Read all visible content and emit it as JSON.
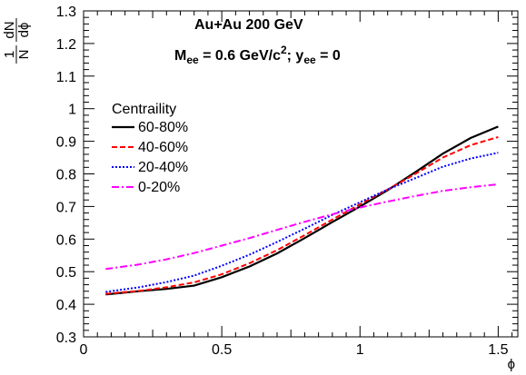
{
  "chart_data": {
    "type": "line",
    "title": "",
    "xlabel": "ϕ",
    "ylabel": {
      "numerator": "1",
      "denominator": "N",
      "diff_numerator": "dN",
      "diff_denominator": "dϕ"
    },
    "xlim": [
      0,
      1.571
    ],
    "ylim": [
      0.3,
      1.3
    ],
    "x_ticks": [
      0,
      0.5,
      1,
      1.5
    ],
    "x_tick_labels": [
      "0",
      "0.5",
      "1",
      "1.5"
    ],
    "y_ticks": [
      0.3,
      0.4,
      0.5,
      0.6,
      0.7,
      0.8,
      0.9,
      1,
      1.1,
      1.2,
      1.3
    ],
    "y_tick_labels": [
      "0.3",
      "0.4",
      "0.5",
      "0.6",
      "0.7",
      "0.8",
      "0.9",
      "1",
      "1.1",
      "1.2",
      "1.3"
    ],
    "grid": false,
    "annotations": {
      "line1": "Au+Au 200 GeV",
      "line2": {
        "m": "M",
        "m_sub": "ee",
        "value": " = 0.6 GeV/c",
        "sup": "2",
        "sep": "; y",
        "y_sub": "ee",
        "tail": " = 0"
      }
    },
    "legend": {
      "title": "Centraility",
      "placement": "left-middle"
    },
    "series": [
      {
        "name": "60-80%",
        "color": "#000000",
        "style": "solid",
        "x": [
          0.08,
          0.2,
          0.3,
          0.4,
          0.5,
          0.6,
          0.7,
          0.8,
          0.9,
          1.0,
          1.1,
          1.2,
          1.3,
          1.4,
          1.5
        ],
        "y": [
          0.43,
          0.44,
          0.447,
          0.457,
          0.483,
          0.516,
          0.556,
          0.603,
          0.652,
          0.7,
          0.75,
          0.805,
          0.862,
          0.91,
          0.945
        ]
      },
      {
        "name": "40-60%",
        "color": "#ff0000",
        "style": "dashed",
        "x": [
          0.08,
          0.2,
          0.3,
          0.4,
          0.5,
          0.6,
          0.7,
          0.8,
          0.9,
          1.0,
          1.1,
          1.2,
          1.3,
          1.4,
          1.5
        ],
        "y": [
          0.432,
          0.441,
          0.452,
          0.467,
          0.492,
          0.526,
          0.566,
          0.612,
          0.66,
          0.707,
          0.752,
          0.8,
          0.85,
          0.888,
          0.913
        ]
      },
      {
        "name": "20-40%",
        "color": "#0000ff",
        "style": "dotted",
        "x": [
          0.08,
          0.2,
          0.3,
          0.4,
          0.5,
          0.6,
          0.7,
          0.8,
          0.9,
          1.0,
          1.1,
          1.2,
          1.3,
          1.4,
          1.5
        ],
        "y": [
          0.438,
          0.452,
          0.468,
          0.488,
          0.518,
          0.552,
          0.591,
          0.632,
          0.674,
          0.713,
          0.752,
          0.787,
          0.822,
          0.847,
          0.865
        ]
      },
      {
        "name": "0-20%",
        "color": "#ff00ff",
        "style": "dashdot",
        "x": [
          0.08,
          0.2,
          0.3,
          0.4,
          0.5,
          0.6,
          0.7,
          0.8,
          0.9,
          1.0,
          1.1,
          1.2,
          1.3,
          1.4,
          1.5
        ],
        "y": [
          0.508,
          0.522,
          0.538,
          0.557,
          0.58,
          0.603,
          0.628,
          0.653,
          0.676,
          0.697,
          0.715,
          0.732,
          0.748,
          0.759,
          0.768
        ]
      }
    ]
  }
}
